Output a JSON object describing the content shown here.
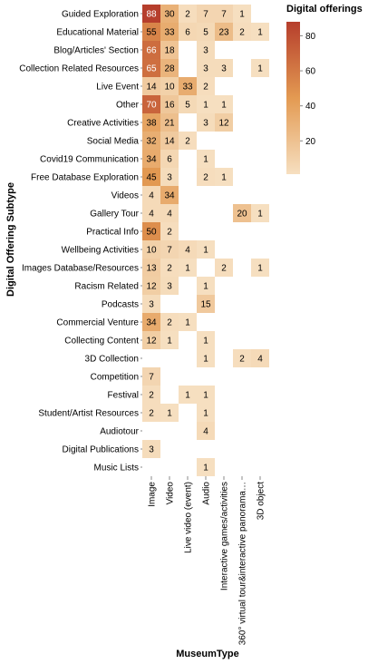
{
  "chart_data": {
    "type": "heatmap",
    "title": "",
    "xlabel": "MuseumType",
    "ylabel": "Digital Offering Subtype",
    "x_categories": [
      "Image",
      "Video",
      "Live video (event)",
      "Audio",
      "Interactive games/activities",
      "360° virtual tour&interactive panorama…",
      "3D object"
    ],
    "y_categories": [
      "Guided Exploration",
      "Educational Material",
      "Blog/Articles' Section",
      "Collection Related Resources",
      "Live Event",
      "Other",
      "Creative Activities",
      "Social Media",
      "Covid19 Communication",
      "Free Database Exploration",
      "Videos",
      "Gallery Tour",
      "Practical Info",
      "Wellbeing Activities",
      "Images Database/Resources",
      "Racism Related",
      "Podcasts",
      "Commercial Venture",
      "Collecting Content",
      "3D Collection",
      "Competition",
      "Festival",
      "Student/Artist Resources",
      "Audiotour",
      "Digital Publications",
      "Music Lists"
    ],
    "values": [
      [
        88,
        30,
        2,
        7,
        7,
        1,
        null
      ],
      [
        55,
        33,
        6,
        5,
        23,
        2,
        1
      ],
      [
        66,
        18,
        null,
        3,
        null,
        null,
        null
      ],
      [
        65,
        28,
        null,
        3,
        3,
        null,
        1
      ],
      [
        14,
        10,
        33,
        2,
        null,
        null,
        null
      ],
      [
        70,
        16,
        5,
        1,
        1,
        null,
        null
      ],
      [
        38,
        21,
        null,
        3,
        12,
        null,
        null
      ],
      [
        32,
        14,
        2,
        null,
        null,
        null,
        null
      ],
      [
        34,
        6,
        null,
        1,
        null,
        null,
        null
      ],
      [
        45,
        3,
        null,
        2,
        1,
        null,
        null
      ],
      [
        4,
        34,
        null,
        null,
        null,
        null,
        null
      ],
      [
        4,
        4,
        null,
        null,
        null,
        20,
        1
      ],
      [
        50,
        2,
        null,
        null,
        null,
        null,
        null
      ],
      [
        10,
        7,
        4,
        1,
        null,
        null,
        null
      ],
      [
        13,
        2,
        1,
        null,
        2,
        null,
        1
      ],
      [
        12,
        3,
        null,
        1,
        null,
        null,
        null
      ],
      [
        3,
        null,
        null,
        15,
        null,
        null,
        null
      ],
      [
        34,
        2,
        1,
        null,
        null,
        null,
        null
      ],
      [
        12,
        1,
        null,
        1,
        null,
        null,
        null
      ],
      [
        null,
        null,
        null,
        1,
        null,
        2,
        4
      ],
      [
        7,
        null,
        null,
        null,
        null,
        null,
        null
      ],
      [
        2,
        null,
        1,
        1,
        null,
        null,
        null
      ],
      [
        2,
        1,
        null,
        1,
        null,
        null,
        null
      ],
      [
        null,
        null,
        null,
        4,
        null,
        null,
        null
      ],
      [
        3,
        null,
        null,
        null,
        null,
        null,
        null
      ],
      [
        null,
        null,
        null,
        1,
        null,
        null,
        null
      ]
    ],
    "legend_title": "Digital offerings",
    "legend_ticks": [
      20,
      40,
      60,
      80
    ],
    "color_range": [
      1,
      88
    ],
    "colors": {
      "low": "#f6dfc0",
      "mid": "#e39a52",
      "high": "#b63e2c"
    },
    "grid": false,
    "legend_position": "right"
  }
}
